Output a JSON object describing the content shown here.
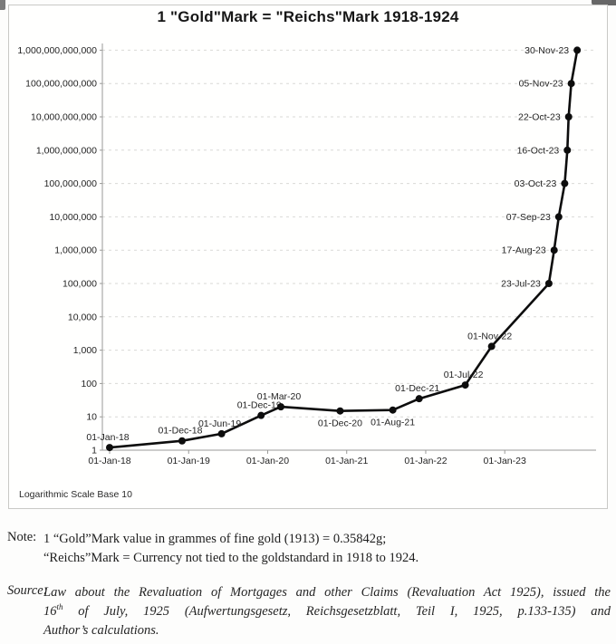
{
  "title": "1 \"Gold\"Mark = \"Reichs\"Mark 1918-1924",
  "chart_data": {
    "type": "line",
    "title": "1 \"Gold\"Mark = \"Reichs\"Mark 1918-1924",
    "scale_note": "Logarithmic Scale Base 10",
    "xlabel": "",
    "ylabel": "",
    "ylim": [
      1,
      1000000000000
    ],
    "y_scale": "log10",
    "grid": "horizontal-dashed",
    "legend": "none",
    "line_color": "#0d0d0d",
    "marker": "filled-circle",
    "y_ticks": [
      "1,000,000,000,000",
      "100,000,000,000",
      "10,000,000,000",
      "1,000,000,000",
      "100,000,000",
      "10,000,000",
      "1,000,000",
      "100,000",
      "10,000",
      "1,000",
      "100",
      "10",
      "1"
    ],
    "x_ticks": [
      {
        "label": "01-Jan-18",
        "months": 0
      },
      {
        "label": "01-Jan-19",
        "months": 12
      },
      {
        "label": "01-Jan-20",
        "months": 24
      },
      {
        "label": "01-Jan-21",
        "months": 36
      },
      {
        "label": "01-Jan-22",
        "months": 48
      },
      {
        "label": "01-Jan-23",
        "months": 60
      }
    ],
    "points": [
      {
        "date": "01-Jan-18",
        "months": 0,
        "value": 1.2,
        "label_pos": "above"
      },
      {
        "date": "01-Dec-18",
        "months": 11,
        "value": 1.9,
        "label_pos": "above"
      },
      {
        "date": "01-Jun-19",
        "months": 17,
        "value": 3.1,
        "label_pos": "above"
      },
      {
        "date": "01-Dec-19",
        "months": 23,
        "value": 11,
        "label_pos": "above"
      },
      {
        "date": "01-Mar-20",
        "months": 26,
        "value": 20,
        "label_pos": "above"
      },
      {
        "date": "01-Dec-20",
        "months": 35,
        "value": 15,
        "label_pos": "below"
      },
      {
        "date": "01-Aug-21",
        "months": 43,
        "value": 16,
        "label_pos": "below"
      },
      {
        "date": "01-Dec-21",
        "months": 47,
        "value": 35,
        "label_pos": "above"
      },
      {
        "date": "01-Jul-22",
        "months": 54,
        "value": 90,
        "label_pos": "above"
      },
      {
        "date": "01-Nov-22",
        "months": 58,
        "value": 1300,
        "label_pos": "above"
      },
      {
        "date": "23-Jul-23",
        "months": 66.7,
        "value": 100000,
        "label_pos": "left"
      },
      {
        "date": "17-Aug-23",
        "months": 67.5,
        "value": 1000000,
        "label_pos": "left"
      },
      {
        "date": "07-Sep-23",
        "months": 68.2,
        "value": 10000000,
        "label_pos": "left"
      },
      {
        "date": "03-Oct-23",
        "months": 69.1,
        "value": 100000000,
        "label_pos": "left"
      },
      {
        "date": "16-Oct-23",
        "months": 69.5,
        "value": 1000000000,
        "label_pos": "left"
      },
      {
        "date": "22-Oct-23",
        "months": 69.7,
        "value": 10000000000,
        "label_pos": "left"
      },
      {
        "date": "05-Nov-23",
        "months": 70.1,
        "value": 100000000000,
        "label_pos": "left"
      },
      {
        "date": "30-Nov-23",
        "months": 71,
        "value": 1000000000000,
        "label_pos": "left"
      }
    ]
  },
  "note": {
    "label": "Note:",
    "lines": [
      "1 “Gold”Mark value in grammes of fine gold (1913) = 0.35842g;",
      "“Reichs”Mark = Currency not tied to the goldstandard in 1918 to 1924."
    ]
  },
  "source": {
    "label": "Source:",
    "line1": "Law about the Revaluation of Mortgages and other Claims (Revaluation Act 1925), issued the",
    "line2": {
      "pre": "16",
      "sup": "th",
      "post": " of July, 1925 (Aufwertungsgesetz, Reichsgesetzblatt, Teil I, 1925, p.133-135) and"
    },
    "line3": "Author’s calculations."
  }
}
